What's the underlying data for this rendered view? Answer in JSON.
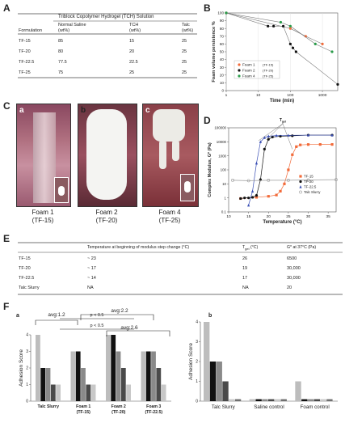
{
  "panels": {
    "A": "A",
    "B": "B",
    "C": "C",
    "D": "D",
    "E": "E",
    "F": "F"
  },
  "table_a": {
    "group_header": "Triblock Copolymer Hydrogel (TCH) Solution",
    "col_formulation": "Formulation",
    "col_saline_1": "Normal Saline",
    "col_saline_2": "(wt%)",
    "col_tch_1": "TCH",
    "col_tch_2": "(wt%)",
    "col_talc_1": "Talc",
    "col_talc_2": "(wt%)",
    "rows": [
      [
        "TF-15",
        "85",
        "15",
        "25"
      ],
      [
        "TF-20",
        "80",
        "20",
        "25"
      ],
      [
        "TF-22.5",
        "77.5",
        "22.5",
        "25"
      ],
      [
        "TF-25",
        "75",
        "25",
        "25"
      ]
    ]
  },
  "photos": {
    "a": {
      "letter": "a",
      "line1": "Foam 1",
      "line2": "(TF-15)"
    },
    "b": {
      "letter": "b",
      "line1": "Foam 2",
      "line2": "(TF-20)"
    },
    "c": {
      "letter": "c",
      "line1": "Foam 4",
      "line2": "(TF-25)"
    }
  },
  "table_e": {
    "h1": "Temperature at beginning of modulus step change (°C)",
    "h2": "T",
    "h2sub": "gel",
    "h2unit": "(°C)",
    "h3": "G* at 37°C (Pa)",
    "rows": [
      [
        "TF-15",
        "~ 23",
        "26",
        "6500"
      ],
      [
        "TF-20",
        "~ 17",
        "19",
        "30,000"
      ],
      [
        "TF-22.5",
        "~ 14",
        "17",
        "30,000"
      ],
      [
        "Talc Slurry",
        "NA",
        "NA",
        "20"
      ]
    ]
  },
  "chart_data": [
    {
      "type": "line",
      "panel": "B",
      "xlabel": "Time (min)",
      "ylabel": "Foam volume persistence %",
      "xscale": "log",
      "xlim": [
        1,
        3000
      ],
      "ylim": [
        0,
        100
      ],
      "xticks": [
        "1",
        "10",
        "100",
        "1000"
      ],
      "yticks": [
        "0",
        "10",
        "20",
        "30",
        "40",
        "50",
        "60",
        "70",
        "80",
        "90",
        "100"
      ],
      "legend_position": "bottom-left",
      "series": [
        {
          "name": "Foam 1",
          "tag": "(TF-15)",
          "color": "#f26b3a",
          "x": [
            1,
            100,
            300,
            1000
          ],
          "y": [
            100,
            80,
            70,
            60
          ]
        },
        {
          "name": "Foam 2",
          "tag": "(TF-20)",
          "color": "#111111",
          "x": [
            1,
            20,
            30,
            60,
            100,
            120,
            150,
            3000
          ],
          "y": [
            100,
            83,
            83,
            83,
            60,
            55,
            50,
            8
          ]
        },
        {
          "name": "Foam 4",
          "tag": "(TF-25)",
          "color": "#2a9d4a",
          "x": [
            1,
            50,
            100,
            600,
            2000
          ],
          "y": [
            100,
            88,
            83,
            60,
            50
          ]
        }
      ]
    },
    {
      "type": "scatter",
      "panel": "D",
      "xlabel": "Temperature (°C)",
      "ylabel": "Complex Modulus, G* (Pa)",
      "yscale": "log",
      "xlim": [
        10,
        37
      ],
      "ylim": [
        0.1,
        100000
      ],
      "xticks": [
        "10",
        "15",
        "20",
        "25",
        "30",
        "35"
      ],
      "yticks": [
        "0.1",
        "1",
        "10",
        "100",
        "1000",
        "10000",
        "100000"
      ],
      "annotation": "T",
      "annotation_sub": "gel",
      "legend_position": "right",
      "series": [
        {
          "name": "TF-15",
          "color": "#f26b3a",
          "marker": "square",
          "x": [
            13,
            17,
            20,
            22,
            23,
            24,
            25,
            26,
            27,
            28,
            30,
            33,
            36
          ],
          "y": [
            0.9,
            1.1,
            1.3,
            1.6,
            3,
            10,
            100,
            1200,
            4500,
            6000,
            6400,
            6500,
            6500
          ]
        },
        {
          "name": "TF-20",
          "color": "#111111",
          "marker": "circle",
          "x": [
            13,
            14,
            15,
            16,
            17,
            18,
            19,
            20,
            21,
            23,
            26,
            30,
            36
          ],
          "y": [
            0.9,
            1.0,
            1.0,
            1.1,
            1.5,
            20,
            3000,
            15000,
            22000,
            25000,
            27000,
            30000,
            30000
          ]
        },
        {
          "name": "TF-22.5",
          "color": "#3a4fb5",
          "marker": "triangle",
          "x": [
            15,
            16,
            17,
            18,
            19,
            20,
            22,
            25,
            30,
            36
          ],
          "y": [
            0.3,
            3,
            300,
            10000,
            20000,
            25000,
            28000,
            29000,
            30000,
            30000
          ]
        },
        {
          "name": "Talc Slurry",
          "color": "#9a9a9a",
          "marker": "circle-open",
          "x": [
            11,
            15,
            20,
            25,
            30,
            37
          ],
          "y": [
            18,
            17,
            18,
            18,
            19,
            20
          ]
        }
      ]
    },
    {
      "type": "bar",
      "panel": "F-a",
      "ylabel": "Adhesion Score",
      "ylim": [
        0,
        4
      ],
      "yticks": [
        "0",
        "1",
        "2",
        "3",
        "4"
      ],
      "categories": [
        "Talc Slurry",
        "Foam 1\n(TF-15)",
        "Foam 2\n(TF-20)",
        "Foam 3\n(TF-22.5)"
      ],
      "values": [
        [
          4,
          2,
          2,
          1,
          1
        ],
        [
          3,
          3,
          2,
          1,
          1
        ],
        [
          4,
          4,
          3,
          2,
          1
        ],
        [
          3,
          3,
          3,
          2,
          1
        ]
      ],
      "annotations": [
        "avg:1.2",
        "avg:2.2",
        "avg:2.6",
        "p < 0.5",
        "p < 0.5"
      ]
    },
    {
      "type": "bar",
      "panel": "F-b",
      "ylabel": "Adhesion Score",
      "ylim": [
        0,
        4
      ],
      "yticks": [
        "0",
        "1",
        "2",
        "3",
        "4"
      ],
      "categories": [
        "Talc Slurry",
        "Saline control",
        "Foam control"
      ],
      "values": [
        [
          4,
          2,
          2,
          1,
          0.1,
          0.1
        ],
        [
          0.1,
          0.1,
          0.1,
          0.1,
          0.1,
          0.1
        ],
        [
          1,
          0.1,
          0.1,
          0.1,
          0.1,
          0.1
        ]
      ]
    }
  ]
}
